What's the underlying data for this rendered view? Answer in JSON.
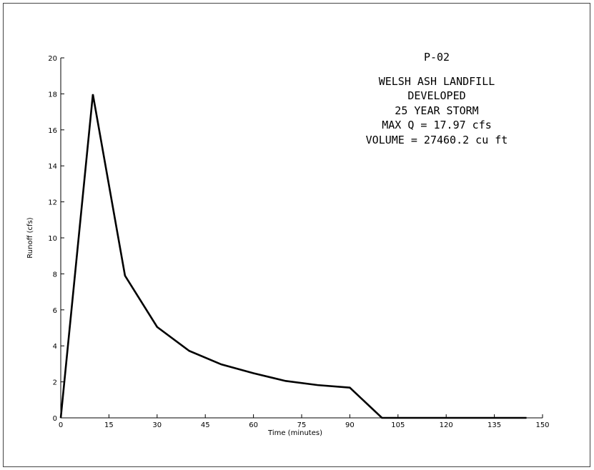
{
  "chart_data": {
    "type": "line",
    "xlabel": "Time (minutes)",
    "ylabel": "Runoff (cfs)",
    "xlim": [
      0,
      150
    ],
    "ylim": [
      0,
      20
    ],
    "xticks": [
      0,
      15,
      30,
      45,
      60,
      75,
      90,
      105,
      120,
      135,
      150
    ],
    "yticks": [
      0,
      2,
      4,
      6,
      8,
      10,
      12,
      14,
      16,
      18,
      20
    ],
    "grid": false,
    "annotations": [
      "P-02",
      "WELSH ASH LANDFILL",
      "DEVELOPED",
      "25 YEAR STORM",
      "MAX Q = 17.97 cfs",
      "VOLUME = 27460.2 cu ft"
    ],
    "series": [
      {
        "color": "#000000",
        "x": [
          0,
          10,
          20,
          30,
          40,
          50,
          60,
          70,
          80,
          90,
          100,
          110,
          120,
          130,
          145
        ],
        "y": [
          0,
          17.97,
          7.9,
          5.05,
          3.72,
          2.97,
          2.48,
          2.05,
          1.82,
          1.68,
          0,
          0,
          0,
          0,
          0
        ]
      }
    ]
  }
}
